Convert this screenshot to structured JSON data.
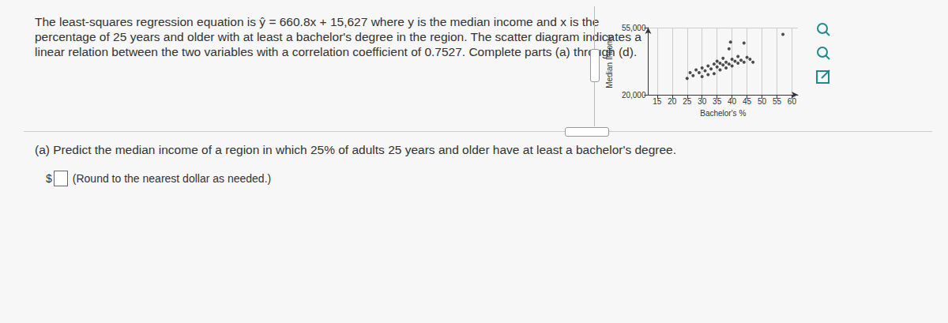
{
  "problem": {
    "lines": [
      "The least-squares regression equation is ŷ = 660.8x + 15,627 where y is the median income and x is the",
      "percentage of 25 years and older with at least a bachelor's degree in the region. The scatter diagram indicates a",
      "linear relation between the two variables with a correlation coefficient of 0.7527. Complete parts (a) through (d)."
    ]
  },
  "part_a": {
    "question": "(a) Predict the median income of a region in which 25% of adults 25 years and older have at least a bachelor's degree.",
    "prefix": "$",
    "hint": "(Round to the nearest dollar as needed.)"
  },
  "chart_data": {
    "type": "scatter",
    "x_label": "Bachelor's %",
    "y_label": "Median Income",
    "marker": "circle",
    "color": "#222222",
    "grid": true,
    "xlim": [
      12,
      62
    ],
    "xticks": [
      15,
      20,
      25,
      30,
      35,
      40,
      45,
      50,
      55,
      60
    ],
    "ylim": [
      20000,
      55000
    ],
    "yticks": [
      20000,
      55000
    ],
    "x": [
      25,
      26,
      27,
      28,
      29,
      30,
      30,
      31,
      32,
      32,
      33,
      34,
      34,
      35,
      35,
      36,
      36,
      37,
      37,
      38,
      38,
      39,
      39,
      39.5,
      40,
      40,
      41,
      42,
      42,
      43,
      44,
      44,
      45,
      46,
      47,
      57
    ],
    "y": [
      28500,
      31500,
      30000,
      33000,
      31500,
      34000,
      29500,
      32500,
      35000,
      30500,
      33500,
      36000,
      31000,
      34500,
      37500,
      33000,
      36500,
      35500,
      39000,
      34000,
      37000,
      36000,
      44000,
      47500,
      38500,
      35000,
      37500,
      36500,
      40000,
      38000,
      37000,
      47000,
      39500,
      38500,
      37000,
      51500
    ]
  }
}
